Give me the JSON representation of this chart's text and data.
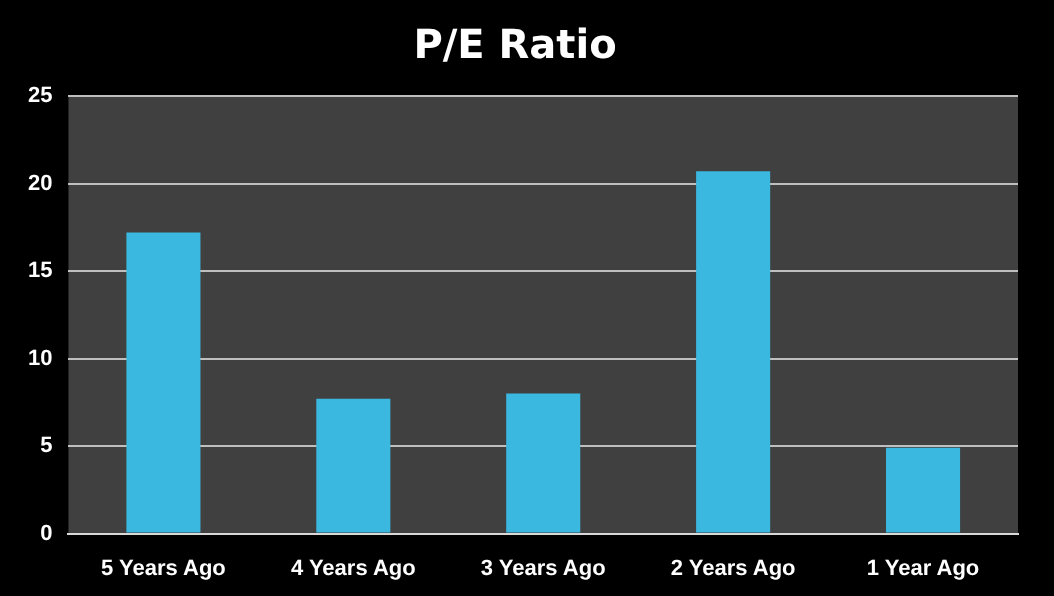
{
  "chart_data": {
    "type": "bar",
    "title": "P/E Ratio",
    "categories": [
      "5 Years Ago",
      "4 Years Ago",
      "3 Years Ago",
      "2 Years Ago",
      "1 Year Ago"
    ],
    "values": [
      17.2,
      7.7,
      8.0,
      20.7,
      4.9
    ],
    "color": "#3bb8e0",
    "ylim": [
      0,
      25
    ],
    "yticks": [
      0,
      5,
      10,
      15,
      20,
      25
    ],
    "grid": "y",
    "legend": false
  }
}
